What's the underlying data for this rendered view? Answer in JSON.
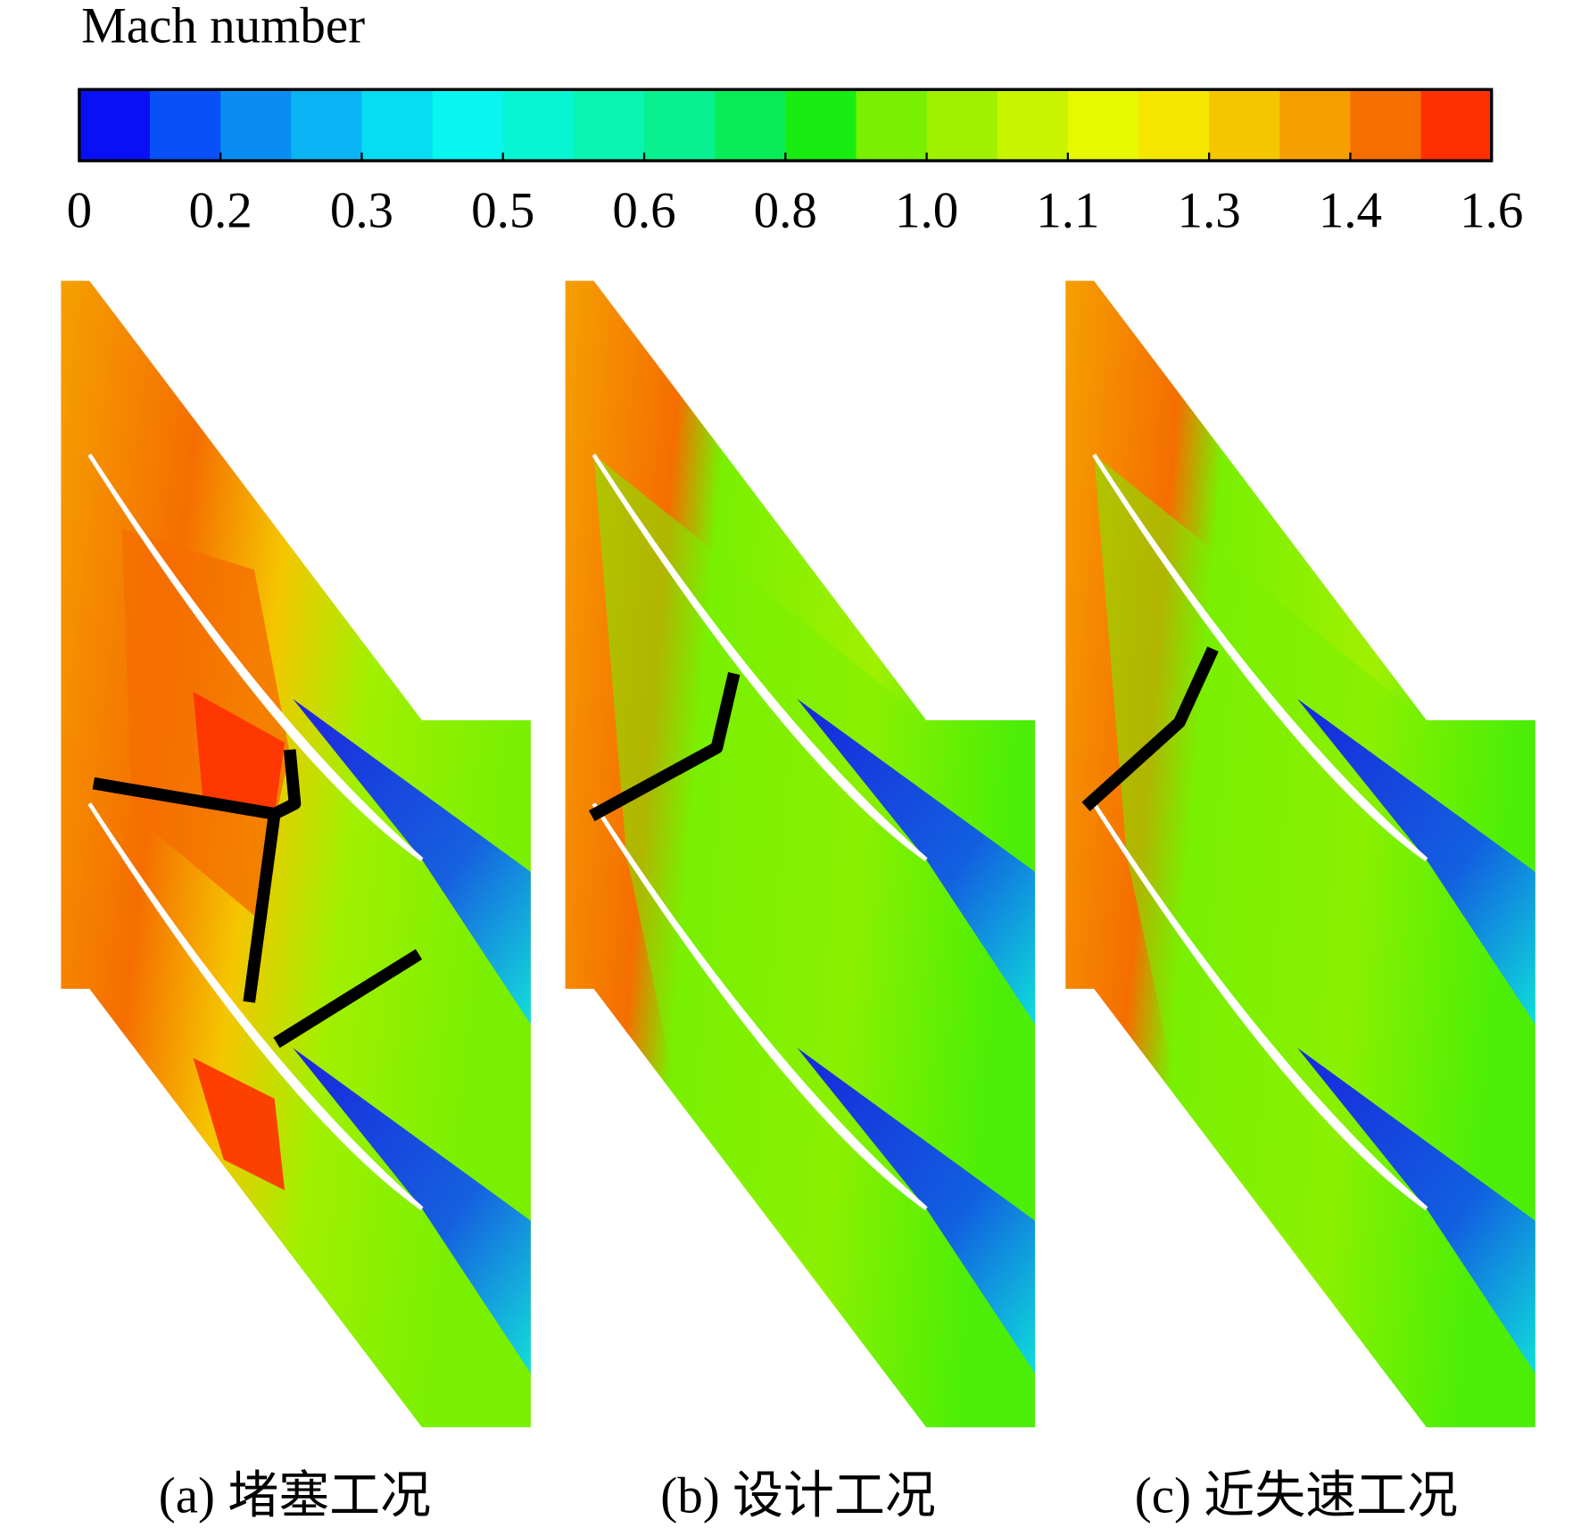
{
  "colorbar": {
    "title": "Mach number",
    "range": [
      0,
      1.6
    ],
    "colors": [
      "#0a10f5",
      "#0a50f8",
      "#0a8cf5",
      "#0ab4f5",
      "#08dcf2",
      "#08f5f0",
      "#08f5d2",
      "#08f5b2",
      "#08f090",
      "#08ec58",
      "#18ec10",
      "#78f000",
      "#a0f000",
      "#c8f400",
      "#e8f800",
      "#f5e600",
      "#f5c600",
      "#f5a000",
      "#f56e00",
      "#ff3000"
    ],
    "ticks": [
      0,
      {
        "value": 0.16,
        "label": "0.2"
      },
      {
        "value": 0.32,
        "label": "0.3"
      },
      {
        "value": 0.48,
        "label": "0.5"
      },
      {
        "value": 0.64,
        "label": "0.6"
      },
      0.8,
      {
        "value": 0.96,
        "label": "1.0"
      },
      {
        "value": 1.12,
        "label": "1.1"
      },
      {
        "value": 1.28,
        "label": "1.3"
      },
      {
        "value": 1.44,
        "label": "1.4"
      },
      1.6
    ]
  },
  "panels": [
    {
      "caption": "(a) 堵塞工况"
    },
    {
      "caption": "(b) 设计工况"
    },
    {
      "caption": "(c) 近失速工况"
    }
  ]
}
